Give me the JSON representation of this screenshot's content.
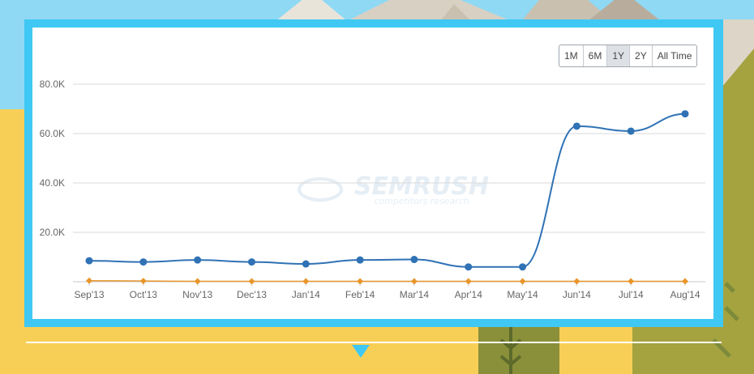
{
  "colors": {
    "frame": "#3fc8f3",
    "series_main": "#2f72b5",
    "series_secondary": "#e8962c",
    "gridline": "#d9d9d9",
    "sky": "#8fd9f4",
    "ground": "#f8cf56"
  },
  "range_buttons": {
    "b1m": "1M",
    "b6m": "6M",
    "b1y": "1Y",
    "b2y": "2Y",
    "ball": "All Time",
    "active": "1Y"
  },
  "watermark": {
    "brand": "SEMRUSH",
    "tagline": "competitors research"
  },
  "chart_data": {
    "type": "line",
    "categories": [
      "Sep'13",
      "Oct'13",
      "Nov'13",
      "Dec'13",
      "Jan'14",
      "Feb'14",
      "Mar'14",
      "Apr'14",
      "May'14",
      "Jun'14",
      "Jul'14",
      "Aug'14"
    ],
    "y_ticks": [
      "20.0K",
      "40.0K",
      "60.0K",
      "80.0K"
    ],
    "ylim": [
      0,
      80000
    ],
    "grid": true,
    "series": [
      {
        "values": [
          8500,
          8000,
          8800,
          8000,
          7200,
          8800,
          9000,
          6000,
          6000,
          63000,
          61000,
          68000
        ],
        "marker": "circle",
        "color": "#2f72b5"
      },
      {
        "values": [
          400,
          300,
          150,
          150,
          150,
          150,
          150,
          150,
          150,
          150,
          150,
          150
        ],
        "marker": "diamond",
        "color": "#e8962c"
      }
    ]
  }
}
